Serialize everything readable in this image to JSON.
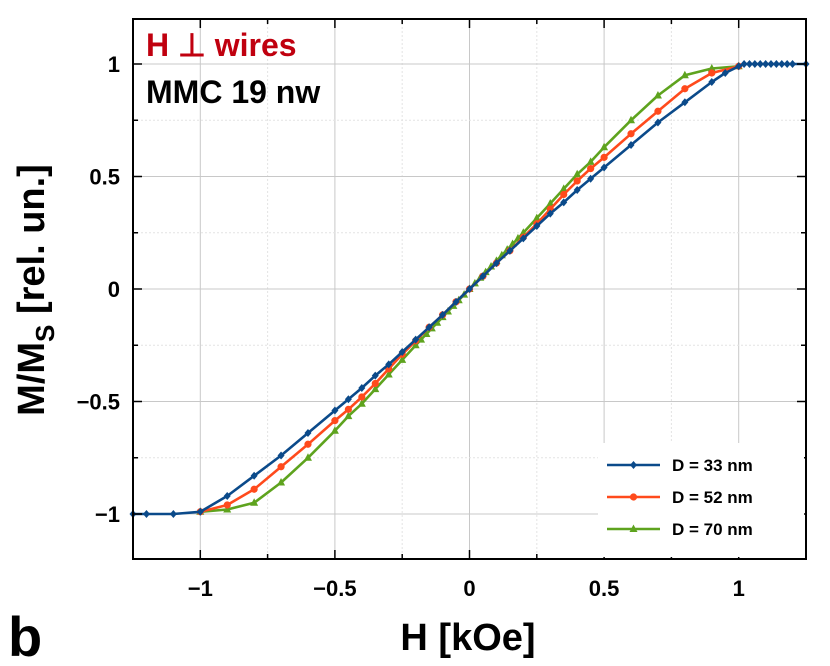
{
  "chart_data": {
    "type": "line",
    "title": "",
    "xlabel": "H [kOe]",
    "ylabel": "M/M",
    "ylabel_subscript": "S",
    "ylabel_suffix": " [rel. un.]",
    "xlim": [
      -1.25,
      1.25
    ],
    "ylim": [
      -1.2,
      1.2
    ],
    "grid": true,
    "x_ticks": [
      {
        "value": -1,
        "label": "−1"
      },
      {
        "value": -0.5,
        "label": "−0.5"
      },
      {
        "value": 0,
        "label": "0"
      },
      {
        "value": 0.5,
        "label": "0.5"
      },
      {
        "value": 1,
        "label": "1"
      }
    ],
    "y_ticks": [
      {
        "value": -1,
        "label": "−1"
      },
      {
        "value": -0.5,
        "label": "−0.5"
      },
      {
        "value": 0,
        "label": "0"
      },
      {
        "value": 0.5,
        "label": "0.5"
      },
      {
        "value": 1,
        "label": "1"
      }
    ],
    "annotations": {
      "line1": "H ⊥ wires",
      "line1_color": "#c0000f",
      "line2": "MMC 19 nw",
      "panel_label": "b"
    },
    "legend_position": "bottom-right",
    "series": [
      {
        "name": "D = 33 nm",
        "color": "#0b4a8a",
        "marker": "diamond",
        "x": [
          -1.25,
          -1.2,
          -1.1,
          -1.0,
          -0.9,
          -0.8,
          -0.7,
          -0.6,
          -0.5,
          -0.45,
          -0.4,
          -0.35,
          -0.3,
          -0.25,
          -0.2,
          -0.15,
          -0.1,
          -0.05,
          0,
          0.05,
          0.1,
          0.15,
          0.2,
          0.25,
          0.3,
          0.35,
          0.4,
          0.45,
          0.5,
          0.6,
          0.7,
          0.8,
          0.9,
          0.95,
          1.0,
          1.02,
          1.04,
          1.06,
          1.08,
          1.1,
          1.12,
          1.14,
          1.16,
          1.18,
          1.2,
          1.25
        ],
        "y": [
          -1,
          -1,
          -1,
          -0.99,
          -0.92,
          -0.83,
          -0.74,
          -0.64,
          -0.54,
          -0.49,
          -0.44,
          -0.385,
          -0.335,
          -0.28,
          -0.225,
          -0.17,
          -0.115,
          -0.057,
          0,
          0.057,
          0.115,
          0.17,
          0.225,
          0.28,
          0.335,
          0.385,
          0.44,
          0.49,
          0.54,
          0.64,
          0.74,
          0.83,
          0.92,
          0.96,
          0.99,
          1,
          1,
          1,
          1,
          1,
          1,
          1,
          1,
          1,
          1,
          1
        ]
      },
      {
        "name": "D = 52 nm",
        "color": "#ff4a1c",
        "marker": "circle",
        "x": [
          -1.0,
          -0.9,
          -0.8,
          -0.7,
          -0.6,
          -0.5,
          -0.45,
          -0.4,
          -0.35,
          -0.3,
          -0.25,
          -0.2,
          -0.15,
          -0.1,
          -0.05,
          0,
          0.05,
          0.1,
          0.15,
          0.2,
          0.25,
          0.3,
          0.35,
          0.4,
          0.45,
          0.5,
          0.6,
          0.7,
          0.8,
          0.9,
          1.0
        ],
        "y": [
          -0.99,
          -0.96,
          -0.89,
          -0.79,
          -0.69,
          -0.585,
          -0.535,
          -0.48,
          -0.42,
          -0.355,
          -0.29,
          -0.23,
          -0.17,
          -0.115,
          -0.057,
          0,
          0.057,
          0.115,
          0.17,
          0.23,
          0.29,
          0.355,
          0.42,
          0.48,
          0.535,
          0.585,
          0.69,
          0.79,
          0.89,
          0.96,
          0.99
        ]
      },
      {
        "name": "D = 70 nm",
        "color": "#5ea31e",
        "marker": "triangle",
        "x": [
          -1.0,
          -0.9,
          -0.8,
          -0.7,
          -0.6,
          -0.5,
          -0.45,
          -0.4,
          -0.35,
          -0.3,
          -0.25,
          -0.2,
          -0.18,
          -0.16,
          -0.14,
          -0.12,
          -0.1,
          -0.08,
          -0.06,
          -0.04,
          -0.02,
          0,
          0.02,
          0.04,
          0.06,
          0.08,
          0.1,
          0.12,
          0.14,
          0.16,
          0.18,
          0.2,
          0.25,
          0.3,
          0.35,
          0.4,
          0.45,
          0.5,
          0.6,
          0.7,
          0.8,
          0.9,
          1.0
        ],
        "y": [
          -0.99,
          -0.98,
          -0.95,
          -0.86,
          -0.75,
          -0.63,
          -0.565,
          -0.51,
          -0.445,
          -0.38,
          -0.315,
          -0.25,
          -0.225,
          -0.2,
          -0.175,
          -0.15,
          -0.125,
          -0.1,
          -0.075,
          -0.05,
          -0.025,
          0,
          0.025,
          0.05,
          0.075,
          0.1,
          0.125,
          0.15,
          0.175,
          0.2,
          0.225,
          0.25,
          0.315,
          0.38,
          0.445,
          0.51,
          0.565,
          0.63,
          0.75,
          0.86,
          0.95,
          0.98,
          0.99
        ]
      }
    ]
  }
}
